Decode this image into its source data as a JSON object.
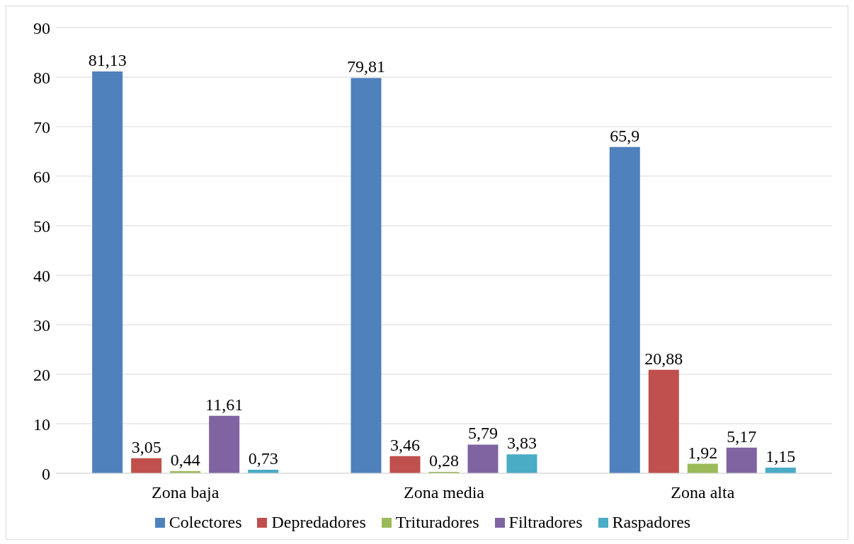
{
  "chart_data": {
    "type": "bar",
    "categories": [
      "Zona baja",
      "Zona media",
      "Zona alta"
    ],
    "series": [
      {
        "name": "Colectores",
        "color": "#4f81bd",
        "values": [
          81.13,
          79.81,
          65.9
        ],
        "value_labels": [
          "81,13",
          "79,81",
          "65,9"
        ]
      },
      {
        "name": "Depredadores",
        "color": "#c0504d",
        "values": [
          3.05,
          3.46,
          20.88
        ],
        "value_labels": [
          "3,05",
          "3,46",
          "20,88"
        ]
      },
      {
        "name": "Trituradores",
        "color": "#9bbb59",
        "values": [
          0.44,
          0.28,
          1.92
        ],
        "value_labels": [
          "0,44",
          "0,28",
          "1,92"
        ]
      },
      {
        "name": "Filtradores",
        "color": "#8064a2",
        "values": [
          11.61,
          5.79,
          5.17
        ],
        "value_labels": [
          "11,61",
          "5,79",
          "5,17"
        ]
      },
      {
        "name": "Raspadores",
        "color": "#4bacc6",
        "values": [
          0.73,
          3.83,
          1.15
        ],
        "value_labels": [
          "0,73",
          "3,83",
          "1,15"
        ]
      }
    ],
    "ylim": [
      0,
      90
    ],
    "yticks": [
      0,
      10,
      20,
      30,
      40,
      50,
      60,
      70,
      80,
      90
    ],
    "grid": "y",
    "legend": "bottom"
  }
}
